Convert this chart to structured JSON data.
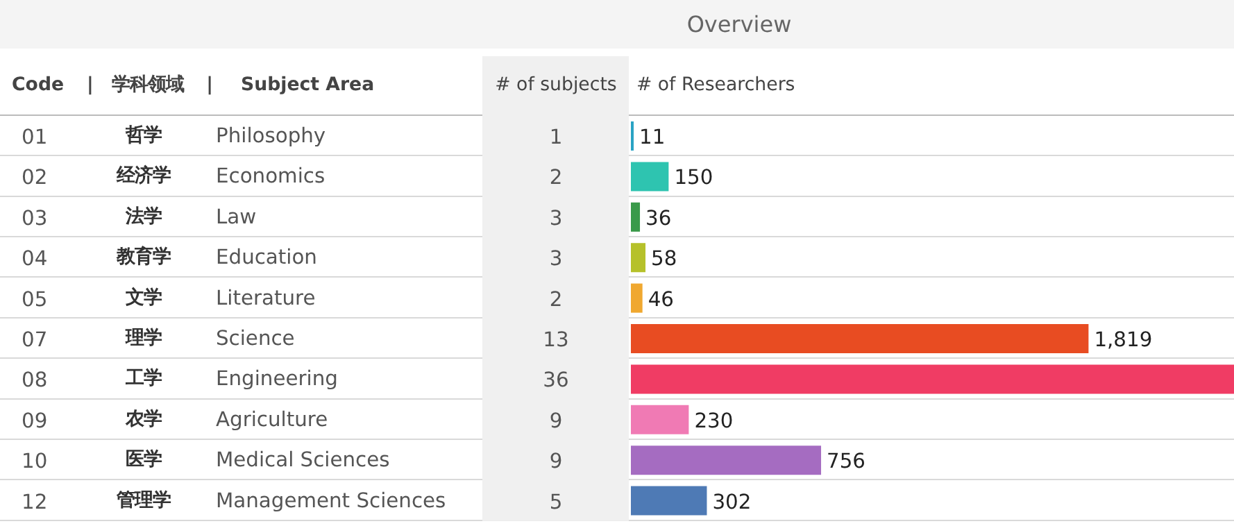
{
  "chart_data": [
    {
      "type": "other",
      "annotations": [
        "Code",
        "|",
        "学科领域",
        "|",
        "01",
        "哲学",
        "02",
        "经济学",
        "03",
        "法学",
        "04",
        "教育学",
        "05",
        "文学",
        "07",
        "理学",
        "08",
        "工学",
        "09",
        "农学",
        "10",
        "医学",
        "12",
        "管理学"
      ]
    },
    {
      "type": "bar",
      "orientation": "horizontal",
      "title": "Overview",
      "ylabel": "Subject Area",
      "xlabel": "# of Researchers",
      "categories": [
        "Philosophy",
        "Economics",
        "Law",
        "Education",
        "Literature",
        "Science",
        "Engineering",
        "Agriculture",
        "Medical Sciences",
        "Management Sciences"
      ],
      "values": [
        11,
        150,
        36,
        58,
        46,
        1819,
        2400,
        230,
        756,
        302
      ],
      "colors": [
        "#2aa3c4",
        "#2ec4b0",
        "#3a9a4a",
        "#b6c12a",
        "#f0a830",
        "#e84c22",
        "#f03c64",
        "#f07ab4",
        "#a56cc1",
        "#4e7ab5"
      ],
      "value_labels": [
        "11",
        "150",
        "36",
        "58",
        "46",
        "1,819",
        null,
        "230",
        "756",
        "302"
      ]
    },
    {
      "type": "other",
      "annotations": [
        "# of subjects",
        "1",
        "2",
        "3",
        "3",
        "2",
        "13",
        "36",
        "9",
        "9",
        "5"
      ]
    }
  ]
}
